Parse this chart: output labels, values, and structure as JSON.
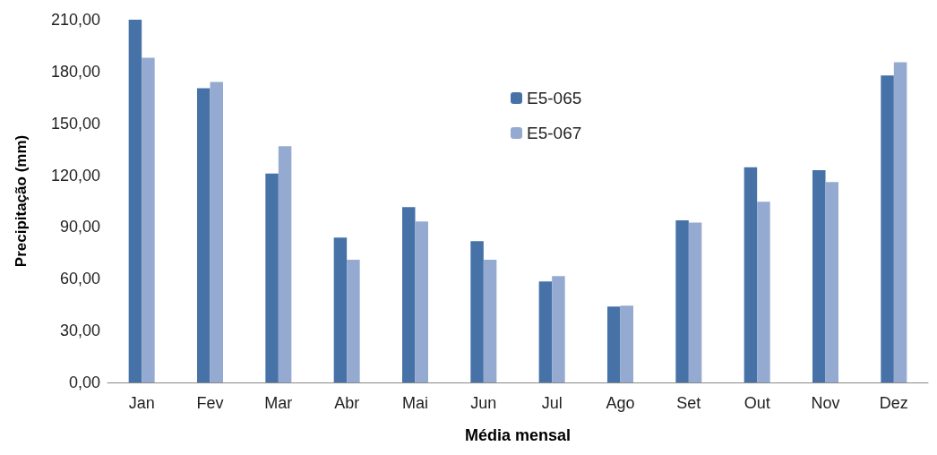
{
  "chart_data": {
    "type": "bar",
    "xlabel": "Média mensal",
    "ylabel": "Precipitação (mm)",
    "categories": [
      "Jan",
      "Fev",
      "Mar",
      "Abr",
      "Mai",
      "Jun",
      "Jul",
      "Ago",
      "Set",
      "Out",
      "Nov",
      "Dez"
    ],
    "series": [
      {
        "name": "E5-065",
        "color": "#4672a8",
        "values": [
          210,
          170.3,
          120.9,
          83.9,
          101.5,
          81.8,
          58.5,
          44,
          93.9,
          124.6,
          122.9,
          177.7
        ]
      },
      {
        "name": "E5-067",
        "color": "#95aad0",
        "values": [
          188,
          174,
          136.7,
          71.1,
          93.2,
          71.1,
          61.6,
          44.5,
          92.5,
          104.6,
          116,
          185.4
        ]
      }
    ],
    "ylim": [
      0,
      210
    ],
    "yticks": [
      {
        "value": 0,
        "label": "0,00"
      },
      {
        "value": 30,
        "label": "30,00"
      },
      {
        "value": 60,
        "label": "60,00"
      },
      {
        "value": 90,
        "label": "90,00"
      },
      {
        "value": 120,
        "label": "120,00"
      },
      {
        "value": 150,
        "label": "150,00"
      },
      {
        "value": 180,
        "label": "180,00"
      },
      {
        "value": 210,
        "label": "210,00"
      }
    ],
    "grid": false,
    "legend": "top"
  }
}
